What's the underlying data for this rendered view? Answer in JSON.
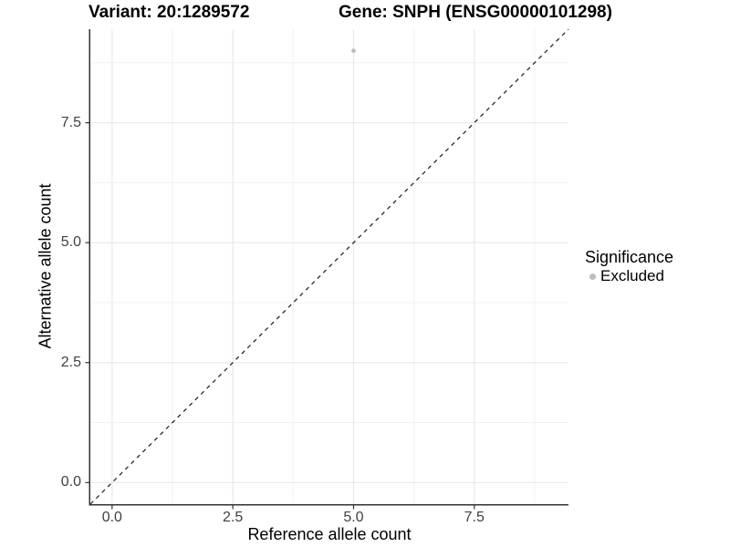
{
  "chart_data": {
    "type": "scatter",
    "titles": {
      "variant": "Variant: 20:1289572",
      "gene": "Gene: SNPH (ENSG00000101298)"
    },
    "xlabel": "Reference allele count",
    "ylabel": "Alternative allele count",
    "xlim": [
      -0.45,
      9.45
    ],
    "ylim": [
      -0.45,
      9.45
    ],
    "x_ticks": [
      {
        "value": 0,
        "label": "0.0"
      },
      {
        "value": 2.5,
        "label": "2.5"
      },
      {
        "value": 5,
        "label": "5.0"
      },
      {
        "value": 7.5,
        "label": "7.5"
      }
    ],
    "y_ticks": [
      {
        "value": 0,
        "label": "0.0"
      },
      {
        "value": 2.5,
        "label": "2.5"
      },
      {
        "value": 5,
        "label": "5.0"
      },
      {
        "value": 7.5,
        "label": "7.5"
      }
    ],
    "minor_gridlines": [
      1.25,
      3.75,
      6.25,
      8.75
    ],
    "grid": {
      "show": true,
      "major_color": "#e9e9e9",
      "minor_color": "#f0f0f0"
    },
    "series": [
      {
        "name": "Excluded",
        "color": "#bebebe",
        "point_radius": 2.4,
        "points": [
          {
            "x": 5,
            "y": 9
          }
        ]
      }
    ],
    "reference_line": {
      "slope": 1,
      "intercept": 0,
      "style": "dashed",
      "color": "#1a1a1a"
    },
    "legend": {
      "title": "Significance",
      "position": "right",
      "items": [
        {
          "label": "Excluded",
          "color": "#bebebe"
        }
      ]
    },
    "axis_color": "#333333",
    "tick_label_color": "#404040",
    "background_color": "#ffffff"
  }
}
